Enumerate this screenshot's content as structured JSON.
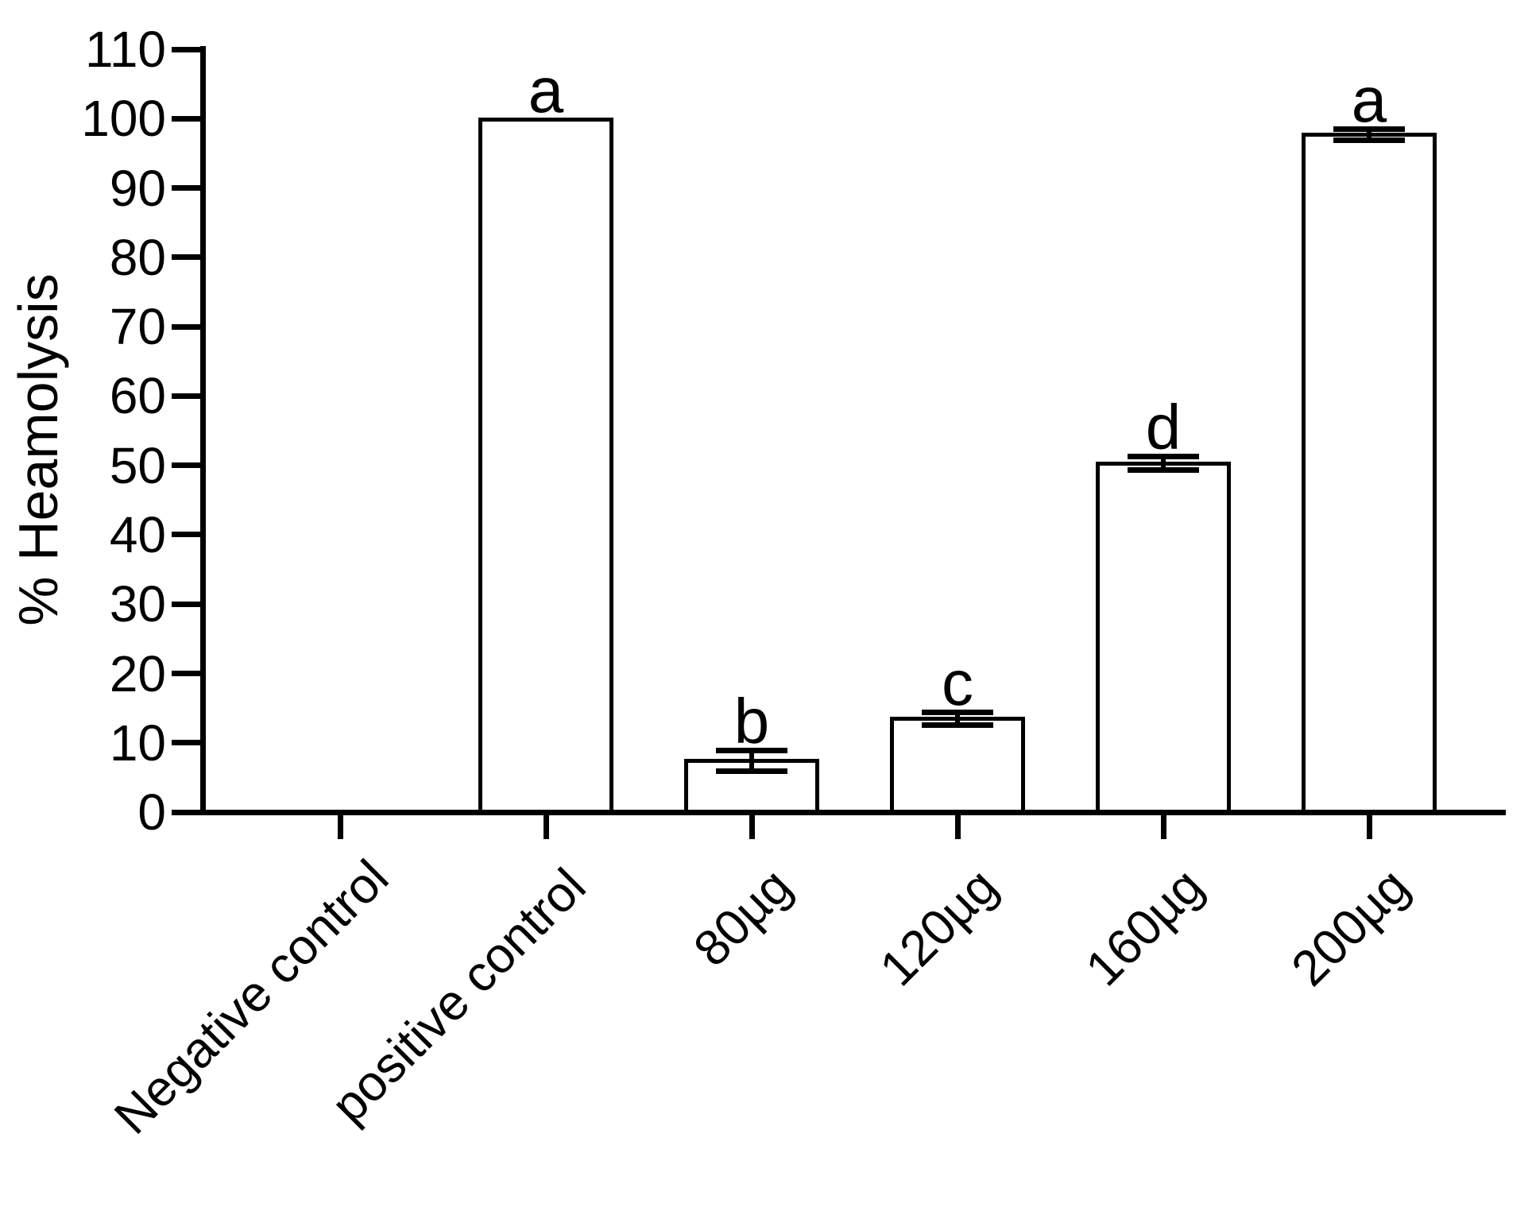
{
  "chart_data": {
    "type": "bar",
    "title": "",
    "xlabel": "",
    "ylabel": "% Heamolysis",
    "ylim": [
      0,
      110
    ],
    "yticks": [
      0,
      10,
      20,
      30,
      40,
      50,
      60,
      70,
      80,
      90,
      100,
      110
    ],
    "grid": false,
    "legend": "none",
    "bar_fill_color": "#ffffff",
    "bar_stroke_color": "#000000",
    "axis_color": "#000000",
    "background_color": "#ffffff",
    "categories": [
      "Negative control",
      "positive control",
      "80µg",
      "120µg",
      "160µg",
      "200µg"
    ],
    "series": [
      {
        "name": "% Heamolysis",
        "values": [
          0,
          99.9,
          7.4,
          13.5,
          50.3,
          97.7
        ],
        "errors": [
          0,
          0,
          1.5,
          0.9,
          1.0,
          0.8
        ],
        "significance_letters": [
          "",
          "a",
          "b",
          "c",
          "d",
          "a"
        ]
      }
    ]
  }
}
